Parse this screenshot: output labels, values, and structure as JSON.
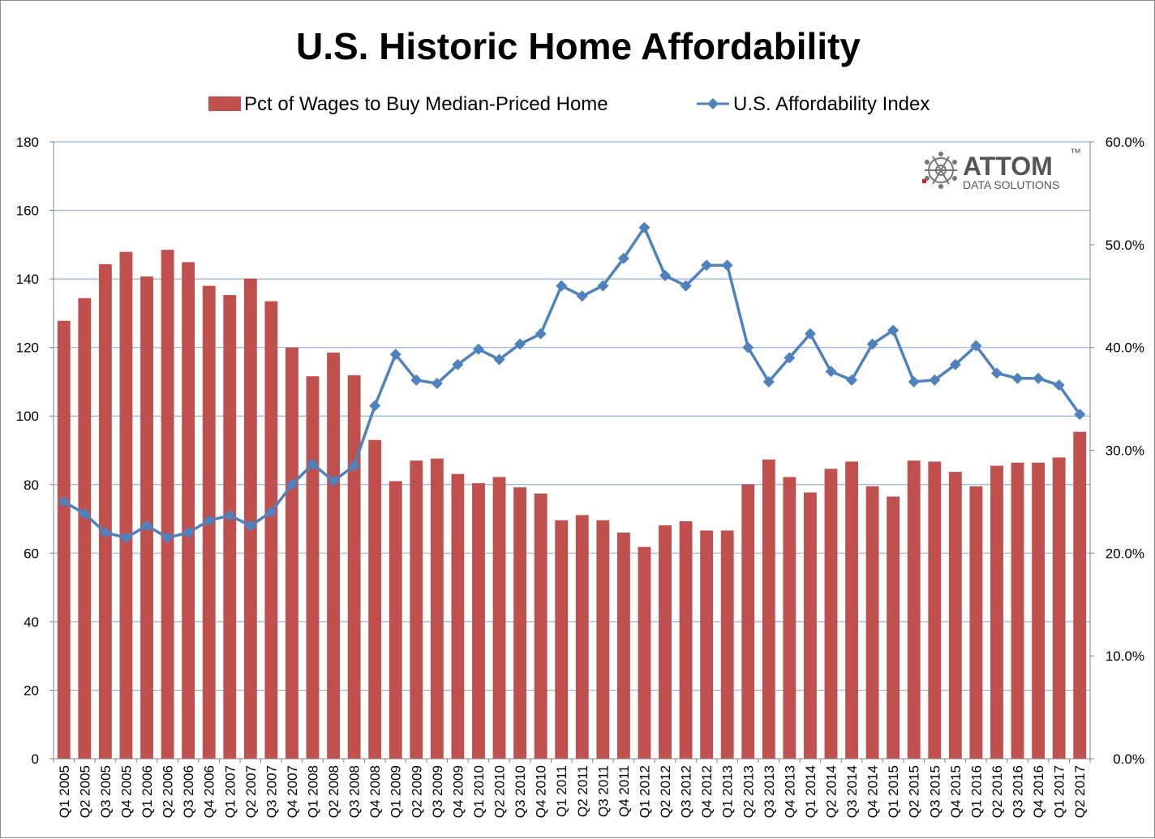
{
  "chart_data": {
    "type": "bar",
    "title": "U.S. Historic Home Affordability",
    "categories": [
      "Q1 2005",
      "Q2 2005",
      "Q3 2005",
      "Q4 2005",
      "Q1 2006",
      "Q2 2006",
      "Q3 2006",
      "Q4 2006",
      "Q1 2007",
      "Q2 2007",
      "Q3 2007",
      "Q4 2007",
      "Q1 2008",
      "Q2 2008",
      "Q3 2008",
      "Q4 2008",
      "Q1 2009",
      "Q2 2009",
      "Q3 2009",
      "Q4 2009",
      "Q1 2010",
      "Q2 2010",
      "Q3 2010",
      "Q4 2010",
      "Q1 2011",
      "Q2 2011",
      "Q3 2011",
      "Q4 2011",
      "Q1 2012",
      "Q2 2012",
      "Q3 2012",
      "Q4 2012",
      "Q1 2013",
      "Q2 2013",
      "Q3 2013",
      "Q4 2013",
      "Q1 2014",
      "Q2 2014",
      "Q3 2014",
      "Q4 2014",
      "Q1 2015",
      "Q2 2015",
      "Q3 2015",
      "Q4 2015",
      "Q1 2016",
      "Q2 2016",
      "Q3 2016",
      "Q4 2016",
      "Q1 2017",
      "Q2 2017"
    ],
    "series": [
      {
        "name": "Pct of Wages to Buy Median-Priced Home",
        "kind": "bar",
        "axis": "right",
        "color": "#c0504d",
        "values": [
          42.6,
          44.8,
          48.1,
          49.3,
          46.9,
          49.5,
          48.3,
          46.0,
          45.1,
          46.7,
          44.5,
          40.0,
          37.2,
          39.5,
          37.3,
          31.0,
          27.0,
          29.0,
          29.2,
          27.7,
          26.8,
          27.4,
          26.4,
          25.8,
          23.2,
          23.7,
          23.2,
          22.0,
          20.6,
          22.7,
          23.1,
          22.2,
          22.2,
          26.7,
          29.1,
          27.4,
          25.9,
          28.2,
          28.9,
          26.5,
          25.5,
          29.0,
          28.9,
          27.9,
          26.5,
          28.5,
          28.8,
          28.8,
          29.3,
          31.8
        ]
      },
      {
        "name": "U.S. Affordability Index",
        "kind": "line",
        "axis": "left",
        "color": "#4f81bd",
        "values": [
          75,
          71.5,
          66,
          64.5,
          68,
          64.5,
          66,
          69.5,
          71,
          68,
          72,
          80,
          86,
          81,
          85.5,
          103,
          118,
          110.5,
          109.5,
          115,
          119.5,
          116.5,
          121,
          124,
          138,
          135,
          138,
          146,
          155,
          141,
          138,
          144,
          144,
          120,
          110,
          117,
          124,
          113,
          110.5,
          121,
          125,
          110,
          110.5,
          115,
          120.5,
          112.5,
          111,
          111,
          109,
          100.5
        ]
      }
    ],
    "y_left": {
      "min": 0,
      "max": 180,
      "ticks": [
        "0",
        "20",
        "40",
        "60",
        "80",
        "100",
        "120",
        "140",
        "160",
        "180"
      ]
    },
    "y_right": {
      "min": 0,
      "max": 60,
      "ticks": [
        "0.0%",
        "10.0%",
        "20.0%",
        "30.0%",
        "40.0%",
        "50.0%",
        "60.0%"
      ]
    },
    "grid": "horizontal",
    "legend_position": "top"
  },
  "logo": {
    "brand": "ATTOM",
    "tagline": "DATA SOLUTIONS",
    "trademark": "™"
  }
}
